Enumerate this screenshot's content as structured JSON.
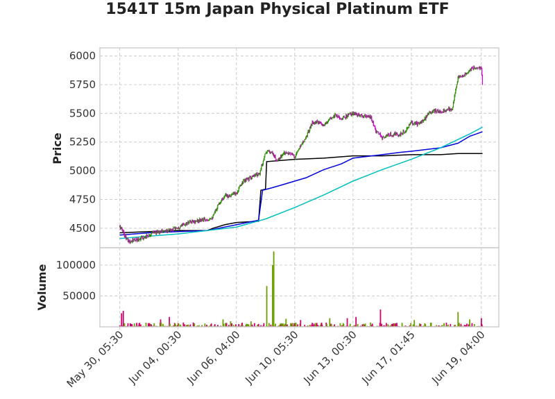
{
  "chart_data": {
    "type": "candlestick",
    "title": "1541T 15m Japan Physical Platinum ETF",
    "price_panel": {
      "ylabel": "Price",
      "ylim": [
        4330,
        6070
      ],
      "yticks": [
        4500,
        4750,
        5000,
        5250,
        5500,
        5750,
        6000
      ],
      "grid": true
    },
    "volume_panel": {
      "ylabel": "Volume",
      "ylim": [
        0,
        128000
      ],
      "yticks": [
        50000,
        100000
      ],
      "grid": true
    },
    "x_ticks": [
      {
        "label": "May 30, 05:30",
        "index": 0
      },
      {
        "label": "Jun 04, 00:30",
        "index": 100
      },
      {
        "label": "Jun 06, 04:00",
        "index": 200
      },
      {
        "label": "Jun 10, 05:30",
        "index": 300
      },
      {
        "label": "Jun 13, 00:30",
        "index": 400
      },
      {
        "label": "Jun 17, 01:45",
        "index": 500
      },
      {
        "label": "Jun 19, 04:00",
        "index": 620
      }
    ],
    "x_range": [
      -34,
      650
    ],
    "price_path": [
      [
        0,
        4510
      ],
      [
        4,
        4490
      ],
      [
        10,
        4420
      ],
      [
        14,
        4390
      ],
      [
        20,
        4390
      ],
      [
        30,
        4400
      ],
      [
        40,
        4420
      ],
      [
        50,
        4440
      ],
      [
        56,
        4460
      ],
      [
        70,
        4470
      ],
      [
        90,
        4490
      ],
      [
        100,
        4510
      ],
      [
        110,
        4530
      ],
      [
        120,
        4550
      ],
      [
        140,
        4570
      ],
      [
        150,
        4580
      ],
      [
        160,
        4600
      ],
      [
        170,
        4720
      ],
      [
        180,
        4780
      ],
      [
        200,
        4800
      ],
      [
        210,
        4900
      ],
      [
        220,
        4930
      ],
      [
        230,
        4950
      ],
      [
        240,
        4980
      ],
      [
        250,
        5160
      ],
      [
        260,
        5170
      ],
      [
        270,
        5080
      ],
      [
        280,
        5150
      ],
      [
        290,
        5160
      ],
      [
        300,
        5120
      ],
      [
        310,
        5220
      ],
      [
        320,
        5300
      ],
      [
        330,
        5420
      ],
      [
        340,
        5420
      ],
      [
        350,
        5390
      ],
      [
        360,
        5450
      ],
      [
        370,
        5490
      ],
      [
        380,
        5450
      ],
      [
        390,
        5480
      ],
      [
        400,
        5500
      ],
      [
        410,
        5480
      ],
      [
        420,
        5470
      ],
      [
        430,
        5470
      ],
      [
        440,
        5340
      ],
      [
        450,
        5290
      ],
      [
        460,
        5310
      ],
      [
        470,
        5320
      ],
      [
        480,
        5310
      ],
      [
        490,
        5350
      ],
      [
        500,
        5420
      ],
      [
        510,
        5410
      ],
      [
        520,
        5430
      ],
      [
        530,
        5500
      ],
      [
        540,
        5520
      ],
      [
        550,
        5520
      ],
      [
        560,
        5530
      ],
      [
        570,
        5540
      ],
      [
        580,
        5810
      ],
      [
        590,
        5830
      ],
      [
        600,
        5880
      ],
      [
        610,
        5900
      ],
      [
        615,
        5910
      ],
      [
        620,
        5880
      ],
      [
        622,
        5760
      ]
    ],
    "ma_series": [
      {
        "color": "#000000",
        "values": [
          [
            0,
            4460
          ],
          [
            50,
            4470
          ],
          [
            100,
            4480
          ],
          [
            150,
            4480
          ],
          [
            160,
            4500
          ],
          [
            180,
            4530
          ],
          [
            200,
            4550
          ],
          [
            238,
            4560
          ],
          [
            242,
            4830
          ],
          [
            250,
            4840
          ],
          [
            252,
            5080
          ],
          [
            300,
            5100
          ],
          [
            350,
            5110
          ],
          [
            400,
            5130
          ],
          [
            450,
            5130
          ],
          [
            500,
            5140
          ],
          [
            550,
            5140
          ],
          [
            580,
            5150
          ],
          [
            622,
            5150
          ]
        ]
      },
      {
        "color": "#0000dd",
        "values": [
          [
            0,
            4440
          ],
          [
            50,
            4460
          ],
          [
            100,
            4470
          ],
          [
            150,
            4480
          ],
          [
            180,
            4510
          ],
          [
            200,
            4530
          ],
          [
            238,
            4570
          ],
          [
            245,
            4830
          ],
          [
            260,
            4850
          ],
          [
            280,
            4880
          ],
          [
            320,
            4940
          ],
          [
            350,
            5010
          ],
          [
            380,
            5060
          ],
          [
            400,
            5110
          ],
          [
            450,
            5140
          ],
          [
            480,
            5160
          ],
          [
            500,
            5170
          ],
          [
            550,
            5200
          ],
          [
            580,
            5240
          ],
          [
            600,
            5300
          ],
          [
            622,
            5340
          ]
        ]
      },
      {
        "color": "#00bfbf",
        "values": [
          [
            0,
            4410
          ],
          [
            50,
            4430
          ],
          [
            100,
            4450
          ],
          [
            150,
            4480
          ],
          [
            200,
            4510
          ],
          [
            250,
            4580
          ],
          [
            300,
            4680
          ],
          [
            350,
            4790
          ],
          [
            400,
            4910
          ],
          [
            450,
            5010
          ],
          [
            500,
            5100
          ],
          [
            550,
            5200
          ],
          [
            600,
            5320
          ],
          [
            622,
            5380
          ]
        ]
      }
    ],
    "volume_spikes": [
      {
        "i": 3,
        "v": 22000,
        "dir": "down"
      },
      {
        "i": 6,
        "v": 26000,
        "dir": "down"
      },
      {
        "i": 70,
        "v": 12000,
        "dir": "down"
      },
      {
        "i": 85,
        "v": 16000,
        "dir": "down"
      },
      {
        "i": 109,
        "v": 7000,
        "dir": "down"
      },
      {
        "i": 177,
        "v": 12000,
        "dir": "up"
      },
      {
        "i": 190,
        "v": 9000,
        "dir": "up"
      },
      {
        "i": 225,
        "v": 9000,
        "dir": "up"
      },
      {
        "i": 252,
        "v": 66000,
        "dir": "up"
      },
      {
        "i": 262,
        "v": 100000,
        "dir": "up"
      },
      {
        "i": 264,
        "v": 122000,
        "dir": "up"
      },
      {
        "i": 285,
        "v": 13000,
        "dir": "up"
      },
      {
        "i": 310,
        "v": 11000,
        "dir": "down"
      },
      {
        "i": 360,
        "v": 14000,
        "dir": "up"
      },
      {
        "i": 390,
        "v": 14000,
        "dir": "down"
      },
      {
        "i": 405,
        "v": 16000,
        "dir": "down"
      },
      {
        "i": 447,
        "v": 28000,
        "dir": "down"
      },
      {
        "i": 505,
        "v": 11000,
        "dir": "up"
      },
      {
        "i": 580,
        "v": 24000,
        "dir": "up"
      },
      {
        "i": 600,
        "v": 12000,
        "dir": "up"
      },
      {
        "i": 620,
        "v": 14000,
        "dir": "down"
      }
    ],
    "colors": {
      "up": "#2a8c00",
      "down": "#cc00cc",
      "volume_up": "#6b9e00",
      "volume_down": "#d4006a"
    }
  }
}
